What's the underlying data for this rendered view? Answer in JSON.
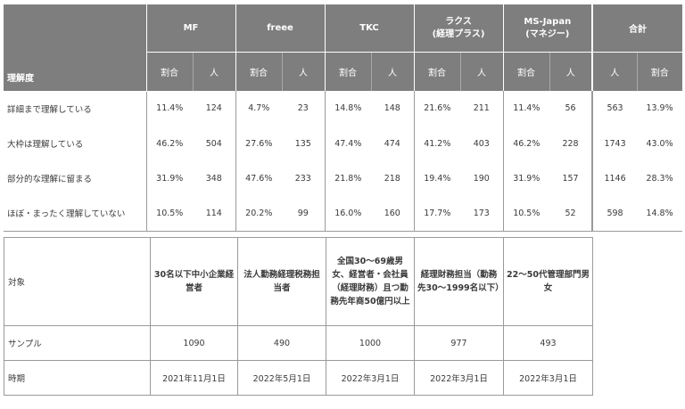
{
  "top_table": {
    "corner_label": "理解度",
    "groups": [
      {
        "name": "MF",
        "cols": [
          "割合",
          "人"
        ]
      },
      {
        "name": "freee",
        "cols": [
          "割合",
          "人"
        ]
      },
      {
        "name": "TKC",
        "cols": [
          "割合",
          "人"
        ]
      },
      {
        "name": "ラクス\n(経理プラス)",
        "cols": [
          "割合",
          "人"
        ]
      },
      {
        "name": "MS-Japan\n(マネジー)",
        "cols": [
          "割合",
          "人"
        ]
      },
      {
        "name": "合計",
        "cols": [
          "人",
          "割合"
        ]
      }
    ],
    "rows": [
      {
        "label": "詳細まで理解している",
        "cells": [
          "11.4%",
          "124",
          "4.7%",
          "23",
          "14.8%",
          "148",
          "21.6%",
          "211",
          "11.4%",
          "56",
          "563",
          "13.9%"
        ]
      },
      {
        "label": "大枠は理解している",
        "cells": [
          "46.2%",
          "504",
          "27.6%",
          "135",
          "47.4%",
          "474",
          "41.2%",
          "403",
          "46.2%",
          "228",
          "1743",
          "43.0%"
        ]
      },
      {
        "label": "部分的な理解に留まる",
        "cells": [
          "31.9%",
          "348",
          "47.6%",
          "233",
          "21.8%",
          "218",
          "19.4%",
          "190",
          "31.9%",
          "157",
          "1146",
          "28.3%"
        ]
      },
      {
        "label": "ほぼ・まったく理解していない",
        "cells": [
          "10.5%",
          "114",
          "20.2%",
          "99",
          "16.0%",
          "160",
          "17.7%",
          "173",
          "10.5%",
          "52",
          "598",
          "14.8%"
        ]
      }
    ]
  },
  "bottom_table": {
    "header_label": "対象",
    "headers": [
      "30名以下中小企業経営者",
      "法人勤務経理税務担当者",
      "全国30〜69歳男女、経営者・会社員（経理財務）且つ勤務先年商50億円以上",
      "経理財務担当（勤務先30〜1999名以下）",
      "22〜50代管理部門男女"
    ],
    "rows": [
      {
        "label": "サンプル",
        "cells": [
          "1090",
          "490",
          "1000",
          "977",
          "493"
        ]
      },
      {
        "label": "時期",
        "cells": [
          "2021年11月1日",
          "2022年5月1日",
          "2022年3月1日",
          "2022年3月1日",
          "2022年3月1日"
        ]
      }
    ]
  }
}
